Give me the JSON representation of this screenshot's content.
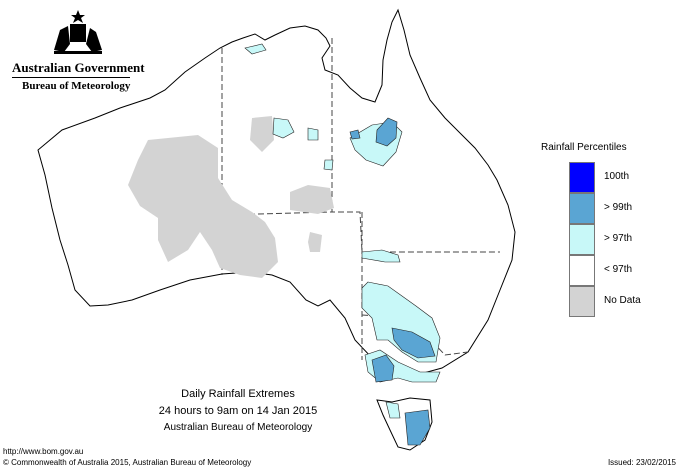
{
  "header": {
    "government": "Australian Government",
    "agency": "Bureau of Meteorology"
  },
  "map": {
    "region": "Australia",
    "colors": {
      "land": "#ffffff",
      "coastline": "#000000",
      "borders": "#444444",
      "no_data": "#d3d3d3",
      "above_97th": "#c8f8f8",
      "above_99th": "#5aa5d3",
      "100th": "#0000ff"
    }
  },
  "legend": {
    "title": "Rainfall Percentiles",
    "items": [
      {
        "label": "100th",
        "color": "#0000ff"
      },
      {
        "label": "> 99th",
        "color": "#5aa5d3"
      },
      {
        "label": "> 97th",
        "color": "#c8f8f8"
      },
      {
        "label": "< 97th",
        "color": "#ffffff"
      },
      {
        "label": "No Data",
        "color": "#d3d3d3"
      }
    ]
  },
  "caption": {
    "line1": "Daily Rainfall Extremes",
    "line2": "24 hours to 9am on 14 Jan 2015",
    "line3": "Australian Bureau of Meteorology"
  },
  "footer": {
    "url": "http://www.bom.gov.au",
    "copyright": "© Commonwealth of Australia 2015, Australian Bureau of Meteorology",
    "issued": "Issued: 23/02/2015"
  }
}
